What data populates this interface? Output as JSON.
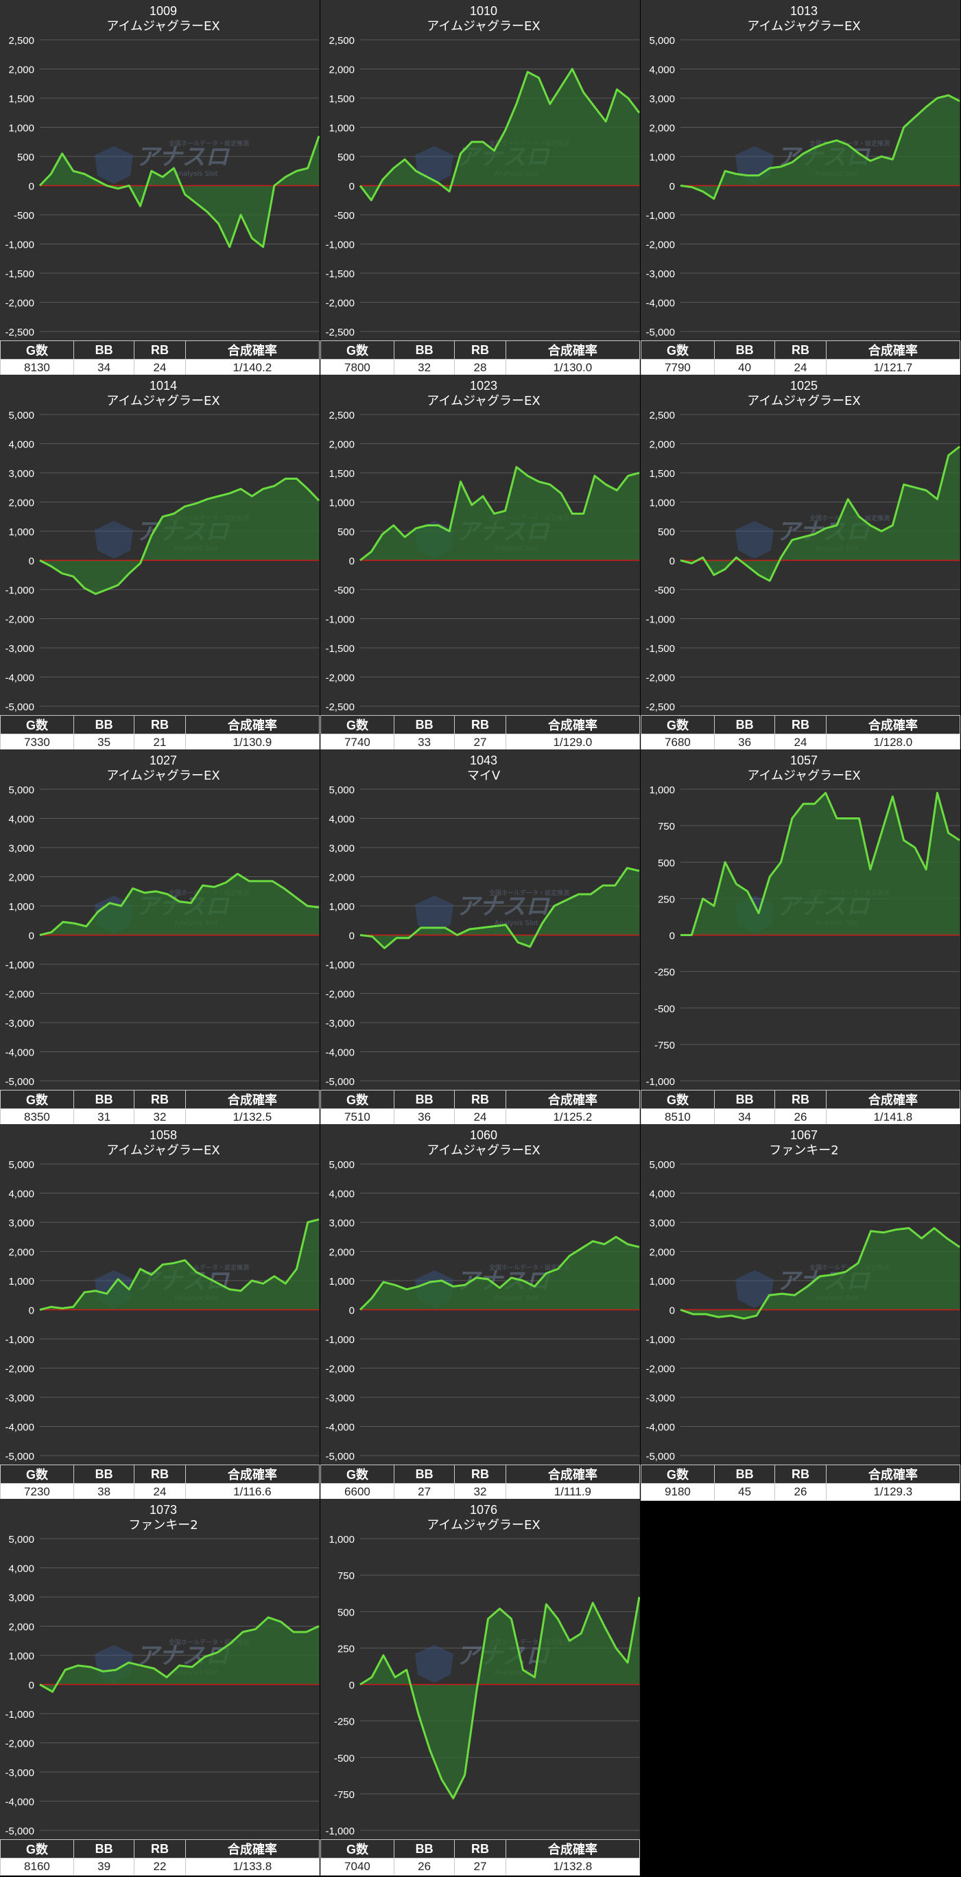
{
  "watermark": {
    "brand": "アナスロ",
    "sub": "Analysis Slot",
    "top": "全国ホールデータ・設定推測"
  },
  "headers": {
    "games": "G数",
    "bb": "BB",
    "rb": "RB",
    "rate": "合成確率"
  },
  "colors": {
    "background": "#303030",
    "grid": "#5a5a5a",
    "zero_line": "#d11b1b",
    "line": "#6bdc3f",
    "fill": "#2e6b2e",
    "axis_text": "#ffffff"
  },
  "chart_data": [
    {
      "type": "area",
      "title": "1009",
      "subtitle": "アイムジャグラーEX",
      "ylim": [
        -2500,
        2500
      ],
      "yticks": [
        2500,
        2000,
        1500,
        1000,
        500,
        0,
        -500,
        -1000,
        -1500,
        -2000,
        -2500
      ],
      "ytick_labels": [
        "2,500",
        "2,000",
        "1,500",
        "1,000",
        "500",
        "0",
        "-500",
        "-1,000",
        "-1,500",
        "-2,000",
        "-2,500"
      ],
      "values": [
        0,
        200,
        550,
        250,
        200,
        100,
        0,
        -50,
        0,
        -350,
        250,
        150,
        300,
        -150,
        -300,
        -450,
        -650,
        -1050,
        -500,
        -900,
        -1050,
        0,
        150,
        250,
        300,
        850
      ],
      "stats": {
        "games": "8130",
        "bb": "34",
        "rb": "24",
        "rate": "1/140.2"
      }
    },
    {
      "type": "area",
      "title": "1010",
      "subtitle": "アイムジャグラーEX",
      "ylim": [
        -2500,
        2500
      ],
      "yticks": [
        2500,
        2000,
        1500,
        1000,
        500,
        0,
        -500,
        -1000,
        -1500,
        -2000,
        -2500
      ],
      "ytick_labels": [
        "2,500",
        "2,000",
        "1,500",
        "1,000",
        "500",
        "0",
        "-500",
        "-1,000",
        "-1,500",
        "-2,000",
        "-2,500"
      ],
      "values": [
        0,
        -250,
        100,
        300,
        450,
        250,
        150,
        50,
        -100,
        550,
        750,
        750,
        600,
        950,
        1400,
        1950,
        1850,
        1400,
        1700,
        2000,
        1600,
        1350,
        1100,
        1650,
        1500,
        1250
      ],
      "stats": {
        "games": "7800",
        "bb": "32",
        "rb": "28",
        "rate": "1/130.0"
      }
    },
    {
      "type": "area",
      "title": "1013",
      "subtitle": "アイムジャグラーEX",
      "ylim": [
        -5000,
        5000
      ],
      "yticks": [
        5000,
        4000,
        3000,
        2000,
        1000,
        0,
        -1000,
        -2000,
        -3000,
        -4000,
        -5000
      ],
      "ytick_labels": [
        "5,000",
        "4,000",
        "3,000",
        "2,000",
        "1,000",
        "0",
        "-1,000",
        "-2,000",
        "-3,000",
        "-4,000",
        "-5,000"
      ],
      "values": [
        0,
        -50,
        -200,
        -450,
        500,
        400,
        350,
        350,
        600,
        650,
        800,
        1100,
        1300,
        1450,
        1550,
        1400,
        1100,
        850,
        1000,
        900,
        2000,
        2350,
        2700,
        3000,
        3100,
        2900
      ],
      "stats": {
        "games": "7790",
        "bb": "40",
        "rb": "24",
        "rate": "1/121.7"
      }
    },
    {
      "type": "area",
      "title": "1014",
      "subtitle": "アイムジャグラーEX",
      "ylim": [
        -5000,
        5000
      ],
      "yticks": [
        5000,
        4000,
        3000,
        2000,
        1000,
        0,
        -1000,
        -2000,
        -3000,
        -4000,
        -5000
      ],
      "ytick_labels": [
        "5,000",
        "4,000",
        "3,000",
        "2,000",
        "1,000",
        "0",
        "-1,000",
        "-2,000",
        "-3,000",
        "-4,000",
        "-5,000"
      ],
      "values": [
        0,
        -200,
        -450,
        -550,
        -950,
        -1150,
        -1000,
        -850,
        -450,
        -100,
        850,
        1500,
        1600,
        1850,
        1950,
        2100,
        2200,
        2300,
        2450,
        2200,
        2450,
        2550,
        2800,
        2800,
        2450,
        2050
      ],
      "stats": {
        "games": "7330",
        "bb": "35",
        "rb": "21",
        "rate": "1/130.9"
      }
    },
    {
      "type": "area",
      "title": "1023",
      "subtitle": "アイムジャグラーEX",
      "ylim": [
        -2500,
        2500
      ],
      "yticks": [
        2500,
        2000,
        1500,
        1000,
        500,
        0,
        -500,
        -1000,
        -1500,
        -2000,
        -2500
      ],
      "ytick_labels": [
        "2,500",
        "2,000",
        "1,500",
        "1,000",
        "500",
        "0",
        "-500",
        "-1,000",
        "-1,500",
        "-2,000",
        "-2,500"
      ],
      "values": [
        0,
        150,
        450,
        600,
        400,
        550,
        600,
        600,
        500,
        1350,
        950,
        1100,
        800,
        850,
        1600,
        1450,
        1350,
        1300,
        1150,
        800,
        800,
        1450,
        1300,
        1200,
        1450,
        1500
      ],
      "stats": {
        "games": "7740",
        "bb": "33",
        "rb": "27",
        "rate": "1/129.0"
      }
    },
    {
      "type": "area",
      "title": "1025",
      "subtitle": "アイムジャグラーEX",
      "ylim": [
        -2500,
        2500
      ],
      "yticks": [
        2500,
        2000,
        1500,
        1000,
        500,
        0,
        -500,
        -1000,
        -1500,
        -2000,
        -2500
      ],
      "ytick_labels": [
        "2,500",
        "2,000",
        "1,500",
        "1,000",
        "500",
        "0",
        "-500",
        "-1,000",
        "-1,500",
        "-2,000",
        "-2,500"
      ],
      "values": [
        0,
        -50,
        50,
        -250,
        -150,
        50,
        -100,
        -250,
        -350,
        50,
        350,
        400,
        450,
        550,
        600,
        1050,
        750,
        600,
        500,
        600,
        1300,
        1250,
        1200,
        1050,
        1800,
        1950
      ],
      "stats": {
        "games": "7680",
        "bb": "36",
        "rb": "24",
        "rate": "1/128.0"
      }
    },
    {
      "type": "area",
      "title": "1027",
      "subtitle": "アイムジャグラーEX",
      "ylim": [
        -5000,
        5000
      ],
      "yticks": [
        5000,
        4000,
        3000,
        2000,
        1000,
        0,
        -1000,
        -2000,
        -3000,
        -4000,
        -5000
      ],
      "ytick_labels": [
        "5,000",
        "4,000",
        "3,000",
        "2,000",
        "1,000",
        "0",
        "-1,000",
        "-2,000",
        "-3,000",
        "-4,000",
        "-5,000"
      ],
      "values": [
        0,
        100,
        450,
        400,
        300,
        800,
        1100,
        1000,
        1600,
        1450,
        1500,
        1400,
        1150,
        1100,
        1700,
        1650,
        1800,
        2100,
        1850,
        1850,
        1850,
        1600,
        1300,
        1000,
        950
      ],
      "stats": {
        "games": "8350",
        "bb": "31",
        "rb": "32",
        "rate": "1/132.5"
      }
    },
    {
      "type": "area",
      "title": "1043",
      "subtitle": "マイV",
      "ylim": [
        -5000,
        5000
      ],
      "yticks": [
        5000,
        4000,
        3000,
        2000,
        1000,
        0,
        -1000,
        -2000,
        -3000,
        -4000,
        -5000
      ],
      "ytick_labels": [
        "5,000",
        "4,000",
        "3,000",
        "2,000",
        "1,000",
        "0",
        "-1,000",
        "-2,000",
        "-3,000",
        "-4,000",
        "-5,000"
      ],
      "values": [
        0,
        -50,
        -450,
        -100,
        -100,
        250,
        250,
        250,
        0,
        200,
        250,
        300,
        350,
        -250,
        -400,
        400,
        1000,
        1200,
        1400,
        1400,
        1700,
        1700,
        2300,
        2200
      ],
      "stats": {
        "games": "7510",
        "bb": "36",
        "rb": "24",
        "rate": "1/125.2"
      }
    },
    {
      "type": "area",
      "title": "1057",
      "subtitle": "アイムジャグラーEX",
      "ylim": [
        -1000,
        1000
      ],
      "yticks": [
        1000,
        750,
        500,
        250,
        0,
        -250,
        -500,
        -750,
        -1000
      ],
      "ytick_labels": [
        "1,000",
        "750",
        "500",
        "250",
        "0",
        "-250",
        "-500",
        "-750",
        "-1,000"
      ],
      "values": [
        0,
        0,
        250,
        200,
        500,
        350,
        300,
        150,
        400,
        500,
        800,
        900,
        900,
        975,
        800,
        800,
        800,
        450,
        700,
        950,
        650,
        600,
        450,
        975,
        700,
        650
      ],
      "stats": {
        "games": "8510",
        "bb": "34",
        "rb": "26",
        "rate": "1/141.8"
      }
    },
    {
      "type": "area",
      "title": "1058",
      "subtitle": "アイムジャグラーEX",
      "ylim": [
        -5000,
        5000
      ],
      "yticks": [
        5000,
        4000,
        3000,
        2000,
        1000,
        0,
        -1000,
        -2000,
        -3000,
        -4000,
        -5000
      ],
      "ytick_labels": [
        "5,000",
        "4,000",
        "3,000",
        "2,000",
        "1,000",
        "0",
        "-1,000",
        "-2,000",
        "-3,000",
        "-4,000",
        "-5,000"
      ],
      "values": [
        0,
        100,
        50,
        100,
        600,
        650,
        550,
        1050,
        700,
        1400,
        1200,
        1550,
        1600,
        1700,
        1300,
        1100,
        900,
        700,
        650,
        1000,
        900,
        1150,
        900,
        1400,
        3000,
        3100
      ],
      "stats": {
        "games": "7230",
        "bb": "38",
        "rb": "24",
        "rate": "1/116.6"
      }
    },
    {
      "type": "area",
      "title": "1060",
      "subtitle": "アイムジャグラーEX",
      "ylim": [
        -5000,
        5000
      ],
      "yticks": [
        5000,
        4000,
        3000,
        2000,
        1000,
        0,
        -1000,
        -2000,
        -3000,
        -4000,
        -5000
      ],
      "ytick_labels": [
        "5,000",
        "4,000",
        "3,000",
        "2,000",
        "1,000",
        "0",
        "-1,000",
        "-2,000",
        "-3,000",
        "-4,000",
        "-5,000"
      ],
      "values": [
        0,
        400,
        950,
        850,
        700,
        800,
        950,
        1000,
        800,
        850,
        1100,
        1050,
        750,
        1100,
        1000,
        800,
        1250,
        1400,
        1850,
        2100,
        2350,
        2250,
        2500,
        2250,
        2150
      ],
      "stats": {
        "games": "6600",
        "bb": "27",
        "rb": "32",
        "rate": "1/111.9"
      }
    },
    {
      "type": "area",
      "title": "1067",
      "subtitle": "ファンキー2",
      "ylim": [
        -5000,
        5000
      ],
      "yticks": [
        5000,
        4000,
        3000,
        2000,
        1000,
        0,
        -1000,
        -2000,
        -3000,
        -4000,
        -5000
      ],
      "ytick_labels": [
        "5,000",
        "4,000",
        "3,000",
        "2,000",
        "1,000",
        "0",
        "-1,000",
        "-2,000",
        "-3,000",
        "-4,000",
        "-5,000"
      ],
      "values": [
        0,
        -150,
        -150,
        -250,
        -200,
        -300,
        -200,
        500,
        550,
        500,
        800,
        1150,
        1200,
        1300,
        1600,
        2700,
        2650,
        2750,
        2800,
        2450,
        2800,
        2450,
        2150
      ],
      "stats": {
        "games": "9180",
        "bb": "45",
        "rb": "26",
        "rate": "1/129.3"
      }
    },
    {
      "type": "area",
      "title": "1073",
      "subtitle": "ファンキー2",
      "ylim": [
        -5000,
        5000
      ],
      "yticks": [
        5000,
        4000,
        3000,
        2000,
        1000,
        0,
        -1000,
        -2000,
        -3000,
        -4000,
        -5000
      ],
      "ytick_labels": [
        "5,000",
        "4,000",
        "3,000",
        "2,000",
        "1,000",
        "0",
        "-1,000",
        "-2,000",
        "-3,000",
        "-4,000",
        "-5,000"
      ],
      "values": [
        0,
        -250,
        500,
        650,
        600,
        450,
        500,
        750,
        650,
        550,
        250,
        650,
        600,
        950,
        1100,
        1400,
        1800,
        1900,
        2300,
        2150,
        1800,
        1800,
        2000
      ],
      "stats": {
        "games": "8160",
        "bb": "39",
        "rb": "22",
        "rate": "1/133.8"
      }
    },
    {
      "type": "area",
      "title": "1076",
      "subtitle": "アイムジャグラーEX",
      "ylim": [
        -1000,
        1000
      ],
      "yticks": [
        1000,
        750,
        500,
        250,
        0,
        -250,
        -500,
        -750,
        -1000
      ],
      "ytick_labels": [
        "1,000",
        "750",
        "500",
        "250",
        "0",
        "-250",
        "-500",
        "-750",
        "-1,000"
      ],
      "values": [
        0,
        50,
        200,
        50,
        100,
        -200,
        -450,
        -650,
        -780,
        -620,
        -50,
        450,
        520,
        450,
        100,
        50,
        550,
        450,
        300,
        350,
        560,
        400,
        250,
        150,
        600
      ],
      "stats": {
        "games": "7040",
        "bb": "26",
        "rb": "27",
        "rate": "1/132.8"
      }
    }
  ]
}
